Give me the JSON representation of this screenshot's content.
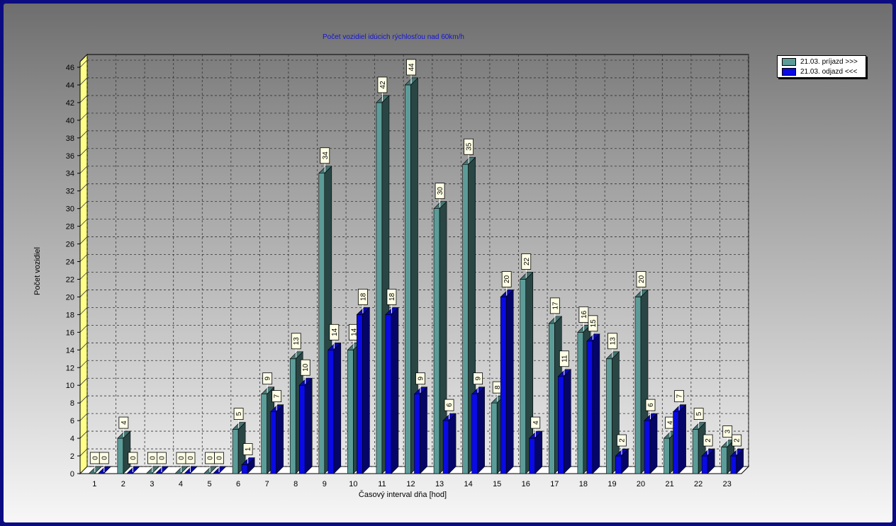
{
  "chart_data": {
    "type": "bar",
    "title": "Počet vozidiel idúcich rýchlosťou nad 60km/h",
    "xlabel": "Časový interval dňa [hod]",
    "ylabel": "Počet vozidiel",
    "ylim": [
      0,
      46
    ],
    "yticks": [
      0,
      2,
      4,
      6,
      8,
      10,
      12,
      14,
      16,
      18,
      20,
      22,
      24,
      26,
      28,
      30,
      32,
      34,
      36,
      38,
      40,
      42,
      44,
      46
    ],
    "categories": [
      "1",
      "2",
      "3",
      "4",
      "5",
      "6",
      "7",
      "8",
      "9",
      "10",
      "11",
      "12",
      "13",
      "14",
      "15",
      "16",
      "17",
      "18",
      "19",
      "20",
      "21",
      "22",
      "23"
    ],
    "series": [
      {
        "name": "21.03.  príjazd >>>",
        "color": "#5c9c98",
        "values": [
          0,
          4,
          0,
          0,
          0,
          5,
          9,
          13,
          34,
          14,
          42,
          44,
          30,
          35,
          8,
          22,
          17,
          16,
          13,
          20,
          4,
          5,
          3
        ]
      },
      {
        "name": "21.03.  odjazd <<<",
        "color": "#0a0ae6",
        "values": [
          0,
          0,
          0,
          0,
          0,
          1,
          7,
          10,
          14,
          18,
          18,
          9,
          6,
          9,
          20,
          4,
          11,
          15,
          2,
          6,
          7,
          2,
          2
        ]
      }
    ],
    "grid": true,
    "legend": "top-right",
    "data_labels": true
  }
}
